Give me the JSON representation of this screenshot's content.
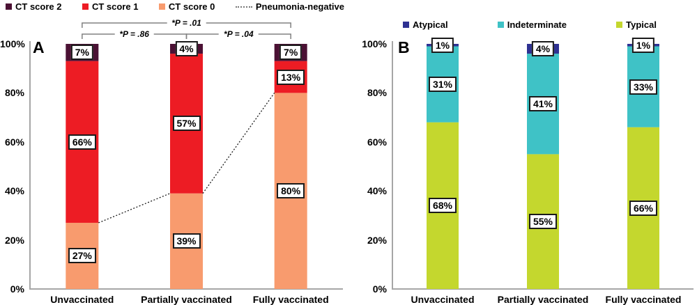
{
  "figure": {
    "background": "#ffffff",
    "axis_color": "#a6a6a6",
    "bracket_color": "#808080",
    "label_box_border": "#1a1a1a",
    "dotted_line_color": "#1a1a1a"
  },
  "chart_data": [
    {
      "type": "bar",
      "stacked": true,
      "panel_label": "A",
      "categories": [
        "Unvaccinated",
        "Partially vaccinated",
        "Fully vaccinated"
      ],
      "series": [
        {
          "name": "CT score 0",
          "color": "#f89b6e",
          "values": [
            27,
            39,
            80
          ]
        },
        {
          "name": "CT score 1",
          "color": "#ed1c24",
          "values": [
            66,
            57,
            13
          ]
        },
        {
          "name": "CT score 2",
          "color": "#4b1134",
          "values": [
            7,
            4,
            7
          ]
        }
      ],
      "value_suffix": "%",
      "line_series": {
        "name": "Pneumonia-negative",
        "style": "dotted",
        "color": "#1a1a1a",
        "values": [
          27,
          39,
          80
        ]
      },
      "legend": [
        {
          "label": "CT score 2",
          "color": "#4b1134",
          "marker": "square"
        },
        {
          "label": "CT score 1",
          "color": "#ed1c24",
          "marker": "square"
        },
        {
          "label": "CT score 0",
          "color": "#f89b6e",
          "marker": "square"
        },
        {
          "label": "Pneumonia-negative",
          "color": "#777777",
          "marker": "dotted-line"
        }
      ],
      "brackets": [
        {
          "label": "*P = .01",
          "from": 0,
          "to": 2,
          "level": 0
        },
        {
          "label": "*P = .86",
          "from": 0,
          "to": 1,
          "level": 1
        },
        {
          "label": "*P = .04",
          "from": 1,
          "to": 2,
          "level": 1
        }
      ],
      "y_ticks": [
        "0%",
        "20%",
        "40%",
        "60%",
        "80%",
        "100%"
      ],
      "ylim": [
        0,
        100
      ],
      "legend_position": "top",
      "grid": false
    },
    {
      "type": "bar",
      "stacked": true,
      "panel_label": "B",
      "categories": [
        "Unvaccinated",
        "Partially vaccinated",
        "Fully vaccinated"
      ],
      "series": [
        {
          "name": "Typical",
          "color": "#c4d72e",
          "values": [
            68,
            55,
            66
          ]
        },
        {
          "name": "Indeterminate",
          "color": "#3fc2c6",
          "values": [
            31,
            41,
            33
          ]
        },
        {
          "name": "Atypical",
          "color": "#2e3192",
          "values": [
            1,
            4,
            1
          ]
        }
      ],
      "value_suffix": "%",
      "legend": [
        {
          "label": "Atypical",
          "color": "#2e3192",
          "marker": "square"
        },
        {
          "label": "Indeterminate",
          "color": "#3fc2c6",
          "marker": "square"
        },
        {
          "label": "Typical",
          "color": "#c4d72e",
          "marker": "square"
        }
      ],
      "brackets": [],
      "y_ticks": [
        "0%",
        "20%",
        "40%",
        "60%",
        "80%",
        "100%"
      ],
      "ylim": [
        0,
        100
      ],
      "legend_position": "top",
      "grid": false
    }
  ]
}
